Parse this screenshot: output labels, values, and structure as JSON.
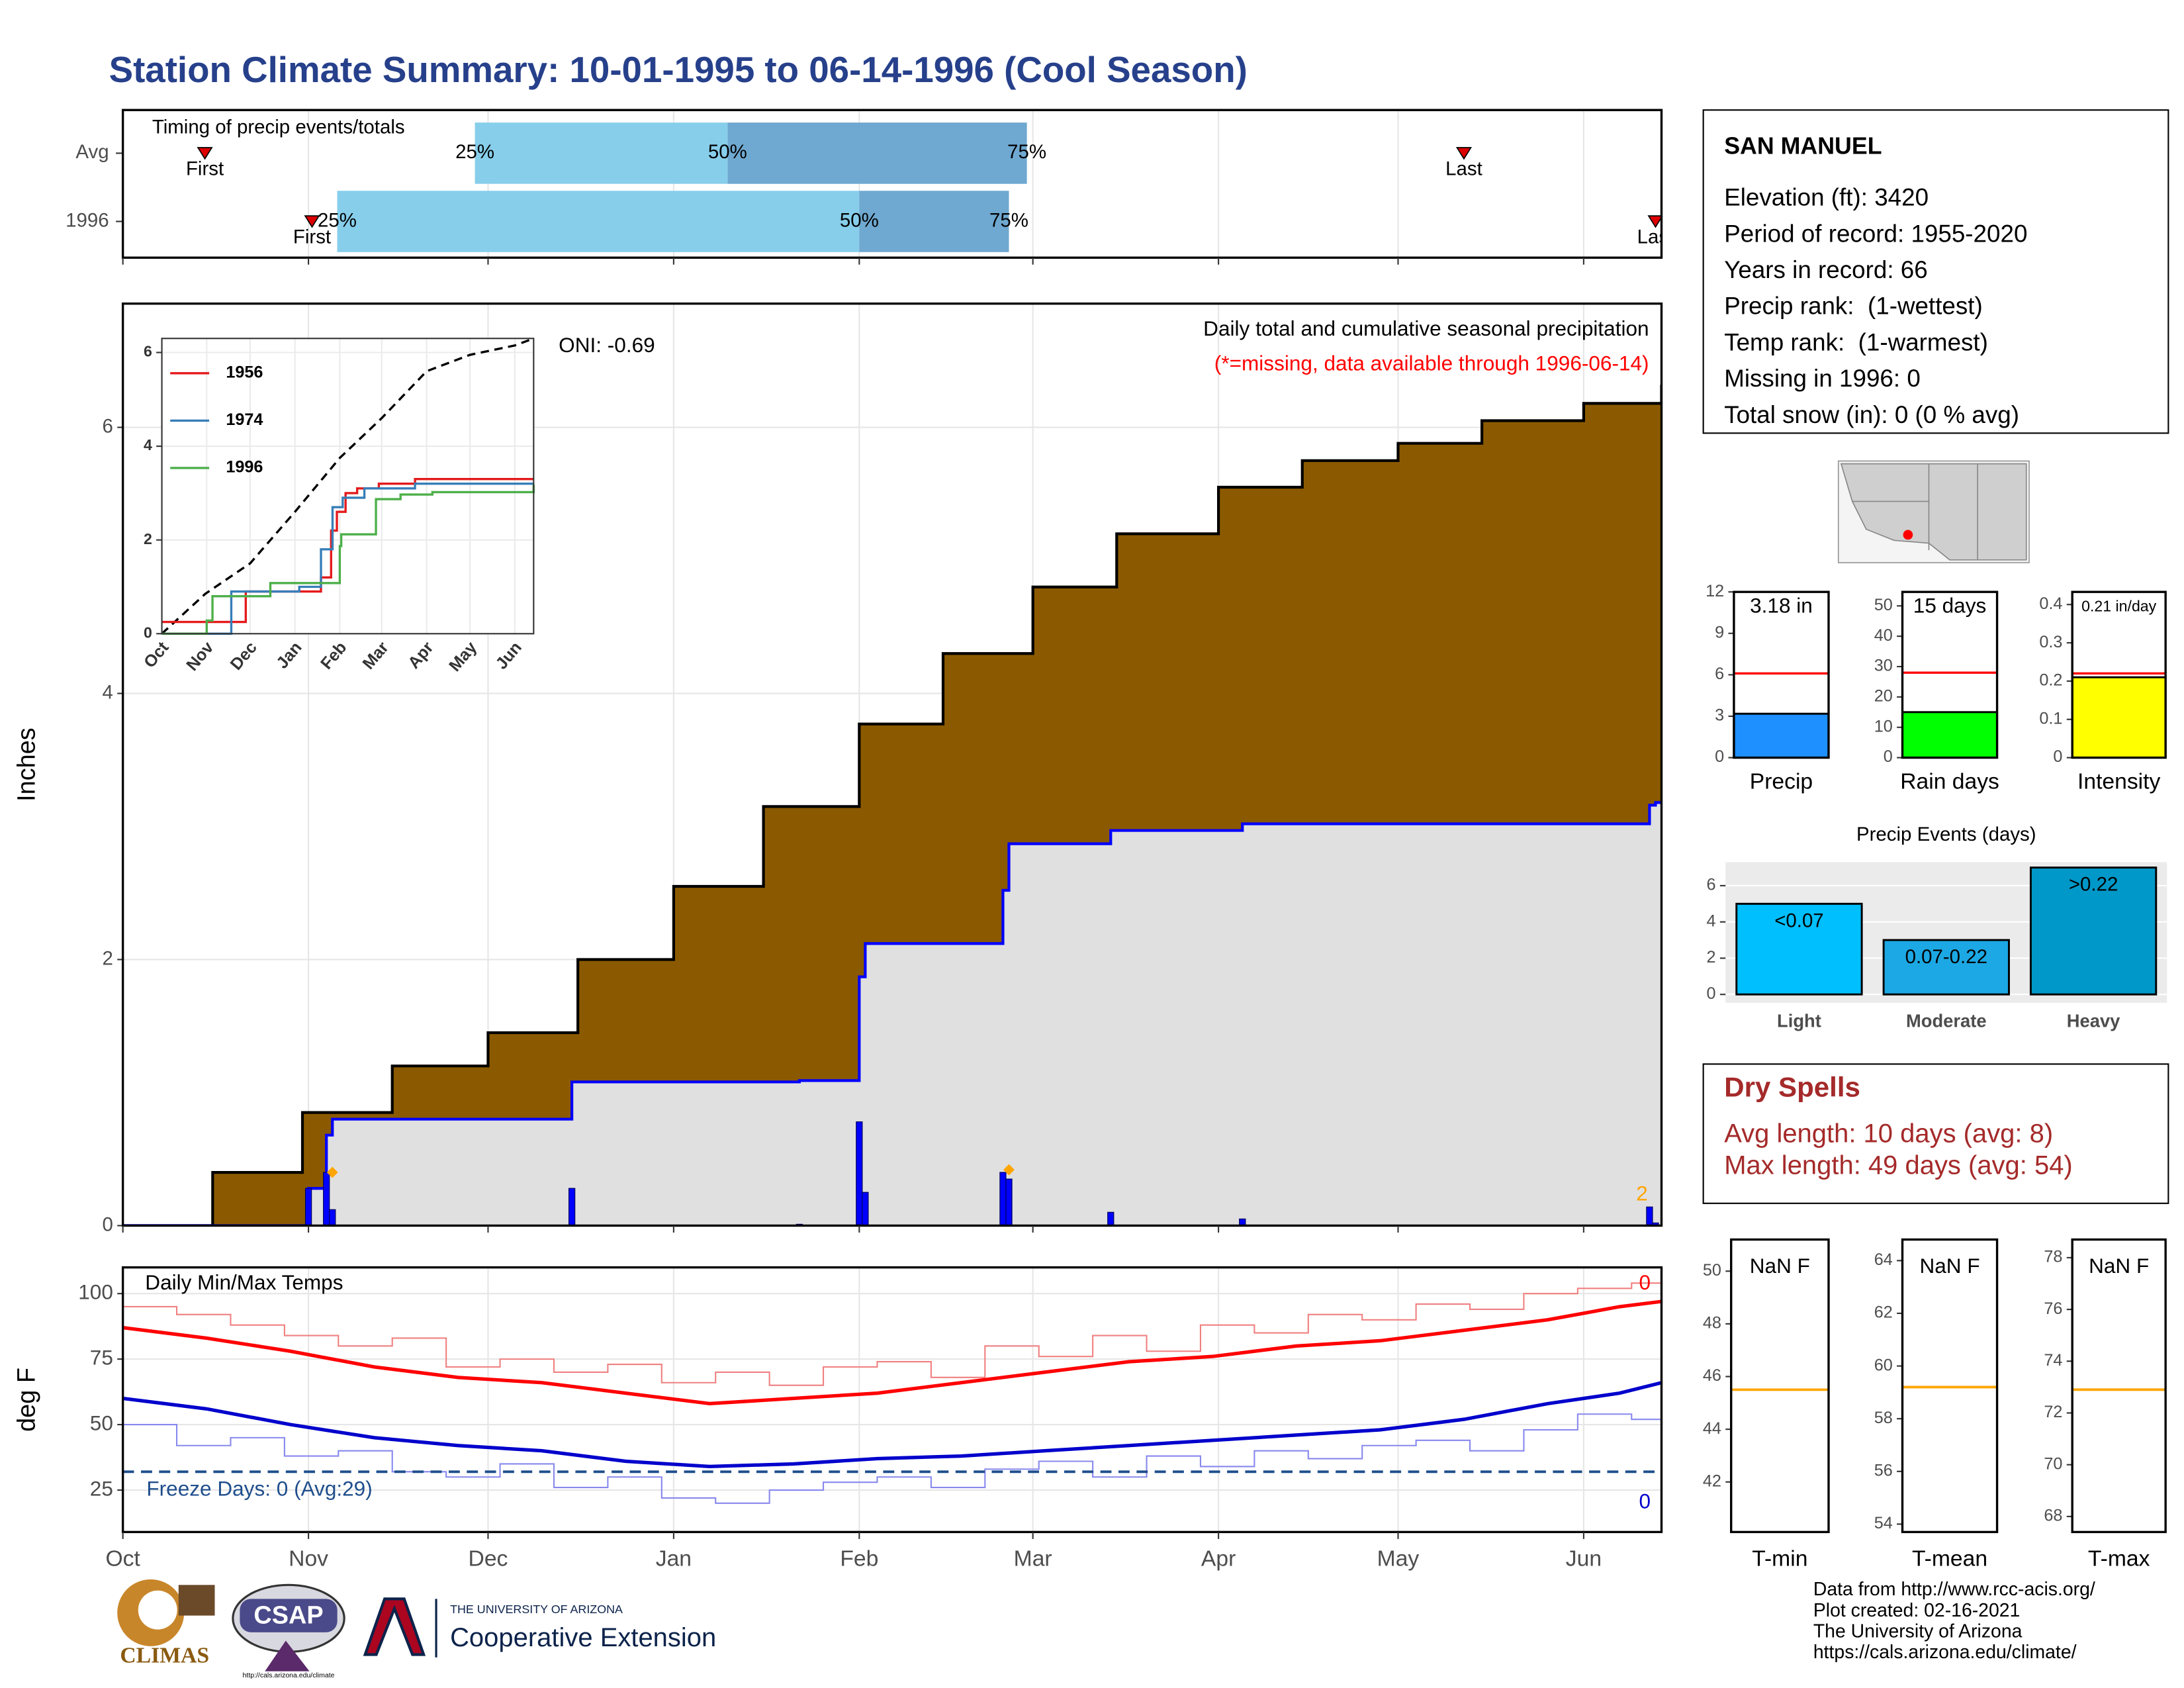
{
  "title": "Station Climate Summary: 10-01-1995 to 06-14-1996 (Cool Season)",
  "chart_data": [
    {
      "type": "timing",
      "title": "Timing of precip events/totals",
      "xlim": [
        0,
        257
      ],
      "labels": {
        "first": "First",
        "last": "Last",
        "q25": "25%",
        "q50": "50%",
        "q75": "75%"
      },
      "rows": [
        {
          "name": "Avg",
          "first": 13.7,
          "q25": 58.8,
          "q50": 101,
          "q75": 151,
          "last": 224
        },
        {
          "name": "1996",
          "first": 31.6,
          "q25": 35.8,
          "q50": 123,
          "q75": 148,
          "last": 256
        }
      ],
      "colors": [
        "#87ceeb",
        "#6fa8d0"
      ]
    },
    {
      "type": "precip",
      "text": "Daily total and cumulative seasonal precipitation",
      "note": "(*=missing, data available through 1996-06-14)",
      "oni": "ONI: -0.69",
      "ylabel": "Inches",
      "annotation": "2",
      "xlim": [
        0,
        257
      ],
      "ylim": [
        0,
        6.93
      ],
      "yticks": [
        0,
        2,
        4,
        6
      ],
      "grid": true,
      "avg": {
        "color": "#8b5a00",
        "x": [
          0,
          15,
          30,
          45,
          61,
          76,
          92,
          107,
          123,
          137,
          152,
          166,
          183,
          197,
          213,
          227,
          244,
          257
        ],
        "values": [
          0,
          0.4,
          0.85,
          1.2,
          1.45,
          2.0,
          2.55,
          3.15,
          3.77,
          4.3,
          4.8,
          5.2,
          5.55,
          5.75,
          5.88,
          6.05,
          6.18,
          6.32
        ]
      },
      "cumulative": {
        "color": "#0000ff",
        "x": [
          0,
          31,
          34,
          35,
          75,
          113,
          123,
          124,
          147,
          148,
          165,
          187,
          255,
          256
        ],
        "values": [
          0,
          0.28,
          0.68,
          0.8,
          1.08,
          1.09,
          1.87,
          2.12,
          2.52,
          2.87,
          2.97,
          3.02,
          3.16,
          3.18
        ]
      },
      "daily": {
        "color": "#0000ff",
        "x": [
          31,
          34,
          35,
          75,
          113,
          123,
          124,
          147,
          148,
          165,
          187,
          255,
          256
        ],
        "values": [
          0.28,
          0.4,
          0.12,
          0.28,
          0.01,
          0.78,
          0.25,
          0.4,
          0.35,
          0.1,
          0.05,
          0.14,
          0.02
        ]
      },
      "markers": {
        "color": "#ffa500",
        "x": [
          35,
          148
        ],
        "values": [
          0.4,
          0.42
        ]
      }
    },
    {
      "type": "line",
      "xlim": [
        0,
        257
      ],
      "ylim": [
        0,
        6.3
      ],
      "yticks": [
        0,
        2,
        4,
        6
      ],
      "xticks": [
        {
          "value": 0,
          "label": "Oct"
        },
        {
          "value": 31,
          "label": "Nov"
        },
        {
          "value": 61,
          "label": "Dec"
        },
        {
          "value": 92,
          "label": "Jan"
        },
        {
          "value": 123,
          "label": "Feb"
        },
        {
          "value": 152,
          "label": "Mar"
        },
        {
          "value": 183,
          "label": "Apr"
        },
        {
          "value": 213,
          "label": "May"
        },
        {
          "value": 244,
          "label": "Jun"
        }
      ],
      "avg": {
        "color": "#000000",
        "x": [
          0,
          30,
          61,
          92,
          123,
          152,
          183,
          213,
          244,
          257
        ],
        "values": [
          0,
          0.85,
          1.5,
          2.6,
          3.75,
          4.6,
          5.6,
          5.95,
          6.15,
          6.3
        ]
      },
      "series": [
        {
          "name": "1956",
          "color": "#e41a1c",
          "x": [
            0,
            58,
            110,
            117,
            121,
            127,
            135,
            150,
            175,
            257
          ],
          "values": [
            0.25,
            0.9,
            1.2,
            2.2,
            2.6,
            3.0,
            3.1,
            3.2,
            3.3,
            3.3
          ]
        },
        {
          "name": "1974",
          "color": "#377eb8",
          "x": [
            0,
            47,
            48,
            95,
            110,
            118,
            125,
            140,
            175,
            257
          ],
          "values": [
            0,
            0,
            0.9,
            1.0,
            1.8,
            2.7,
            2.9,
            3.1,
            3.2,
            3.2
          ]
        },
        {
          "name": "1996",
          "color": "#4daf4a",
          "x": [
            0,
            31,
            35,
            75,
            123,
            124,
            148,
            165,
            187,
            257
          ],
          "values": [
            0,
            0.28,
            0.8,
            1.08,
            1.87,
            2.12,
            2.87,
            2.97,
            3.02,
            3.18
          ]
        }
      ]
    },
    {
      "type": "temps",
      "title": "Daily Min/Max Temps",
      "ylabel": "deg F",
      "xlim": [
        0,
        257
      ],
      "ylim": [
        9,
        110
      ],
      "yticks": [
        25,
        50,
        75,
        100
      ],
      "xticks": [
        {
          "value": 0,
          "label": "Oct"
        },
        {
          "value": 31,
          "label": "Nov"
        },
        {
          "value": 61,
          "label": "Dec"
        },
        {
          "value": 92,
          "label": "Jan"
        },
        {
          "value": 123,
          "label": "Feb"
        },
        {
          "value": 152,
          "label": "Mar"
        },
        {
          "value": 183,
          "label": "Apr"
        },
        {
          "value": 213,
          "label": "May"
        },
        {
          "value": 244,
          "label": "Jun"
        }
      ],
      "freeze": {
        "value": 32,
        "label": "Freeze Days: 0 (Avg:29)",
        "color": "#1f4e8c"
      },
      "annotations": [
        {
          "text": "0",
          "color": "#ff0000"
        },
        {
          "text": "0",
          "color": "#0000cc"
        }
      ],
      "series": [
        {
          "color": "#f08080",
          "step": true,
          "width": 1,
          "x": [
            0,
            9,
            18,
            27,
            36,
            45,
            54,
            63,
            72,
            81,
            90,
            99,
            108,
            117,
            126,
            135,
            144,
            153,
            162,
            171,
            180,
            189,
            198,
            207,
            216,
            225,
            234,
            243,
            252,
            257
          ],
          "values": [
            95,
            92,
            88,
            84,
            80,
            83,
            72,
            75,
            70,
            73,
            66,
            70,
            65,
            72,
            74,
            68,
            80,
            76,
            84,
            78,
            88,
            85,
            92,
            90,
            96,
            94,
            100,
            102,
            104,
            103
          ]
        },
        {
          "color": "#8888ee",
          "step": true,
          "width": 1,
          "x": [
            0,
            9,
            18,
            27,
            36,
            45,
            54,
            63,
            72,
            81,
            90,
            99,
            108,
            117,
            126,
            135,
            144,
            153,
            162,
            171,
            180,
            189,
            198,
            207,
            216,
            225,
            234,
            243,
            252,
            257
          ],
          "values": [
            50,
            42,
            45,
            38,
            40,
            32,
            30,
            35,
            26,
            30,
            22,
            20,
            25,
            28,
            30,
            26,
            33,
            36,
            30,
            38,
            34,
            40,
            37,
            42,
            44,
            40,
            48,
            54,
            52,
            52
          ]
        },
        {
          "color": "#ff0000",
          "step": false,
          "width": 2.5,
          "x": [
            0,
            14,
            28,
            42,
            56,
            70,
            84,
            98,
            112,
            126,
            140,
            154,
            168,
            182,
            196,
            210,
            224,
            238,
            250,
            257
          ],
          "values": [
            87,
            83,
            78,
            72,
            68,
            66,
            62,
            58,
            60,
            62,
            66,
            70,
            74,
            76,
            80,
            82,
            86,
            90,
            95,
            97
          ]
        },
        {
          "color": "#0000cc",
          "step": false,
          "width": 2.5,
          "x": [
            0,
            14,
            28,
            42,
            56,
            70,
            84,
            98,
            112,
            126,
            140,
            154,
            168,
            182,
            196,
            210,
            224,
            238,
            250,
            257
          ],
          "values": [
            60,
            56,
            50,
            45,
            42,
            40,
            36,
            34,
            35,
            37,
            38,
            40,
            42,
            44,
            46,
            48,
            52,
            58,
            62,
            66
          ]
        }
      ]
    },
    {
      "type": "bar",
      "categories": [
        "Precip"
      ],
      "values": [
        3.18
      ],
      "value_labels": [
        "3.18 in"
      ],
      "avg": 6.1,
      "color": "#1e90ff",
      "ylim": [
        0,
        12
      ],
      "yticks": [
        0,
        3,
        6,
        9,
        12
      ]
    },
    {
      "type": "bar",
      "categories": [
        "Rain days"
      ],
      "values": [
        15
      ],
      "value_labels": [
        "15 days"
      ],
      "avg": 28,
      "color": "#00ff00",
      "ylim": [
        0,
        54.6
      ],
      "yticks": [
        0,
        10,
        20,
        30,
        40,
        50
      ]
    },
    {
      "type": "bar",
      "categories": [
        "Intensity"
      ],
      "values": [
        0.21
      ],
      "value_labels": [
        "0.21 in/day"
      ],
      "avg": 0.22,
      "color": "#ffff00",
      "ylim": [
        0,
        0.433
      ],
      "yticks": [
        0,
        0.1,
        0.2,
        0.3,
        0.4
      ]
    },
    {
      "type": "events",
      "title": "Precip Events (days)",
      "categories": [
        "Light",
        "Moderate",
        "Heavy"
      ],
      "ranges": [
        "<0.07",
        "0.07-0.22",
        ">0.22"
      ],
      "values": [
        5,
        3,
        7
      ],
      "colors": [
        "#00bfff",
        "#1ca8e4",
        "#0098c8"
      ],
      "ylim": [
        0,
        7.3
      ],
      "yticks": [
        0,
        2,
        4,
        6
      ],
      "grid": true
    },
    {
      "type": "avgline",
      "category": "T-min",
      "label": "NaN F",
      "avg": 45.5,
      "color": "#ffa500",
      "ylim": [
        40.1,
        51.2
      ],
      "yticks": [
        42,
        44,
        46,
        48,
        50
      ]
    },
    {
      "type": "avgline",
      "category": "T-mean",
      "label": "NaN F",
      "avg": 59.2,
      "color": "#ffa500",
      "ylim": [
        53.7,
        64.8
      ],
      "yticks": [
        54,
        56,
        58,
        60,
        62,
        64
      ]
    },
    {
      "type": "avgline",
      "category": "T-max",
      "label": "NaN F",
      "avg": 72.9,
      "color": "#ffa500",
      "ylim": [
        67.4,
        78.7
      ],
      "yticks": [
        68,
        70,
        72,
        74,
        76,
        78
      ]
    }
  ],
  "station": {
    "name": "SAN MANUEL",
    "lines": [
      "Elevation (ft): 3420",
      "Period of record: 1955-2020",
      "Years in record: 66",
      "Precip rank:  (1-wettest)",
      "Temp rank:  (1-warmest)",
      "Missing in 1996: 0",
      "Total snow (in): 0 (0 % avg)"
    ]
  },
  "dry_spells": {
    "title": "Dry Spells",
    "lines": [
      "Avg length: 10 days (avg: 8)",
      "Max length: 49 days (avg: 54)"
    ]
  },
  "logos": {
    "climas": "CLIMAS",
    "csap": "CSAP",
    "csap_url": "http://cals.arizona.edu/climate",
    "ua": "THE UNIVERSITY OF ARIZONA",
    "extension": "Cooperative Extension"
  },
  "credits": [
    "Data from http://www.rcc-acis.org/",
    "Plot created: 02-16-2021",
    "The University of Arizona",
    "https://cals.arizona.edu/climate/"
  ]
}
